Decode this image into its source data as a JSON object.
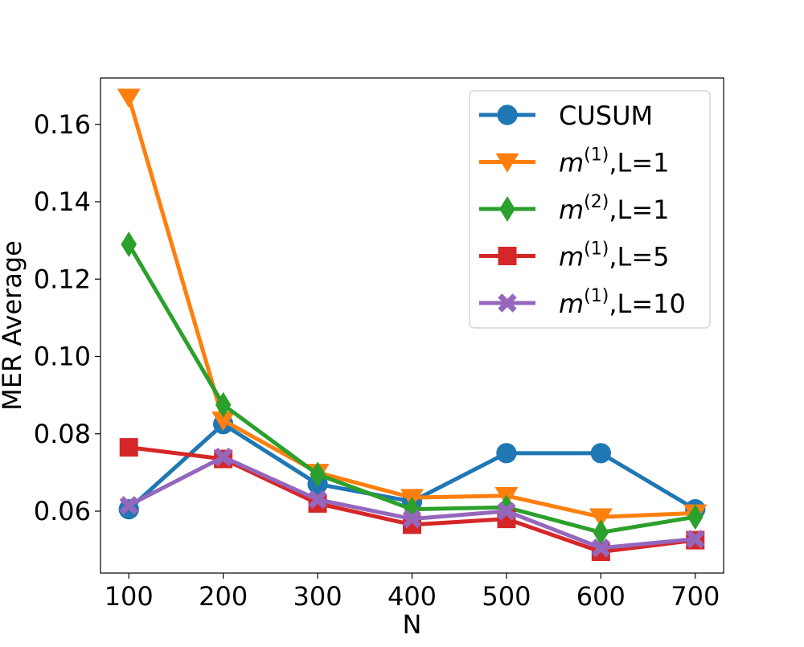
{
  "chart_data": {
    "type": "line",
    "xlabel": "N",
    "ylabel": "MER Average",
    "x": [
      100,
      200,
      300,
      400,
      500,
      600,
      700
    ],
    "xlim": [
      70,
      730
    ],
    "ylim": [
      0.044,
      0.172
    ],
    "yticks": [
      0.06,
      0.08,
      0.1,
      0.12,
      0.14,
      0.16
    ],
    "ytick_labels": [
      "0.06",
      "0.08",
      "0.10",
      "0.12",
      "0.14",
      "0.16"
    ],
    "xtick_labels": [
      "100",
      "200",
      "300",
      "400",
      "500",
      "600",
      "700"
    ],
    "grid": false,
    "legend_position": "upper-right",
    "series": [
      {
        "name": "CUSUM",
        "legend": {
          "base": "CUSUM",
          "sup": "",
          "suffix": ""
        },
        "color": "#1f77b4",
        "marker": "circle",
        "values": [
          0.0605,
          0.0825,
          0.067,
          0.0625,
          0.075,
          0.075,
          0.0605
        ]
      },
      {
        "name": "m(1),L=1",
        "legend": {
          "base": "m",
          "sup": "(1)",
          "suffix": ",L=1"
        },
        "color": "#ff7f0e",
        "marker": "triangle-down",
        "values": [
          0.167,
          0.0835,
          0.07,
          0.0635,
          0.064,
          0.0585,
          0.0595
        ]
      },
      {
        "name": "m(2),L=1",
        "legend": {
          "base": "m",
          "sup": "(2)",
          "suffix": ",L=1"
        },
        "color": "#2ca02c",
        "marker": "diamond",
        "values": [
          0.129,
          0.0875,
          0.0695,
          0.0605,
          0.061,
          0.0545,
          0.0585
        ]
      },
      {
        "name": "m(1),L=5",
        "legend": {
          "base": "m",
          "sup": "(1)",
          "suffix": ",L=5"
        },
        "color": "#d62728",
        "marker": "square",
        "values": [
          0.0765,
          0.0735,
          0.062,
          0.0565,
          0.058,
          0.0495,
          0.0525
        ]
      },
      {
        "name": "m(1),L=10",
        "legend": {
          "base": "m",
          "sup": "(1)",
          "suffix": ",L=10"
        },
        "color": "#9467bd",
        "marker": "x",
        "values": [
          0.0615,
          0.074,
          0.063,
          0.058,
          0.06,
          0.0505,
          0.0528
        ]
      }
    ]
  }
}
